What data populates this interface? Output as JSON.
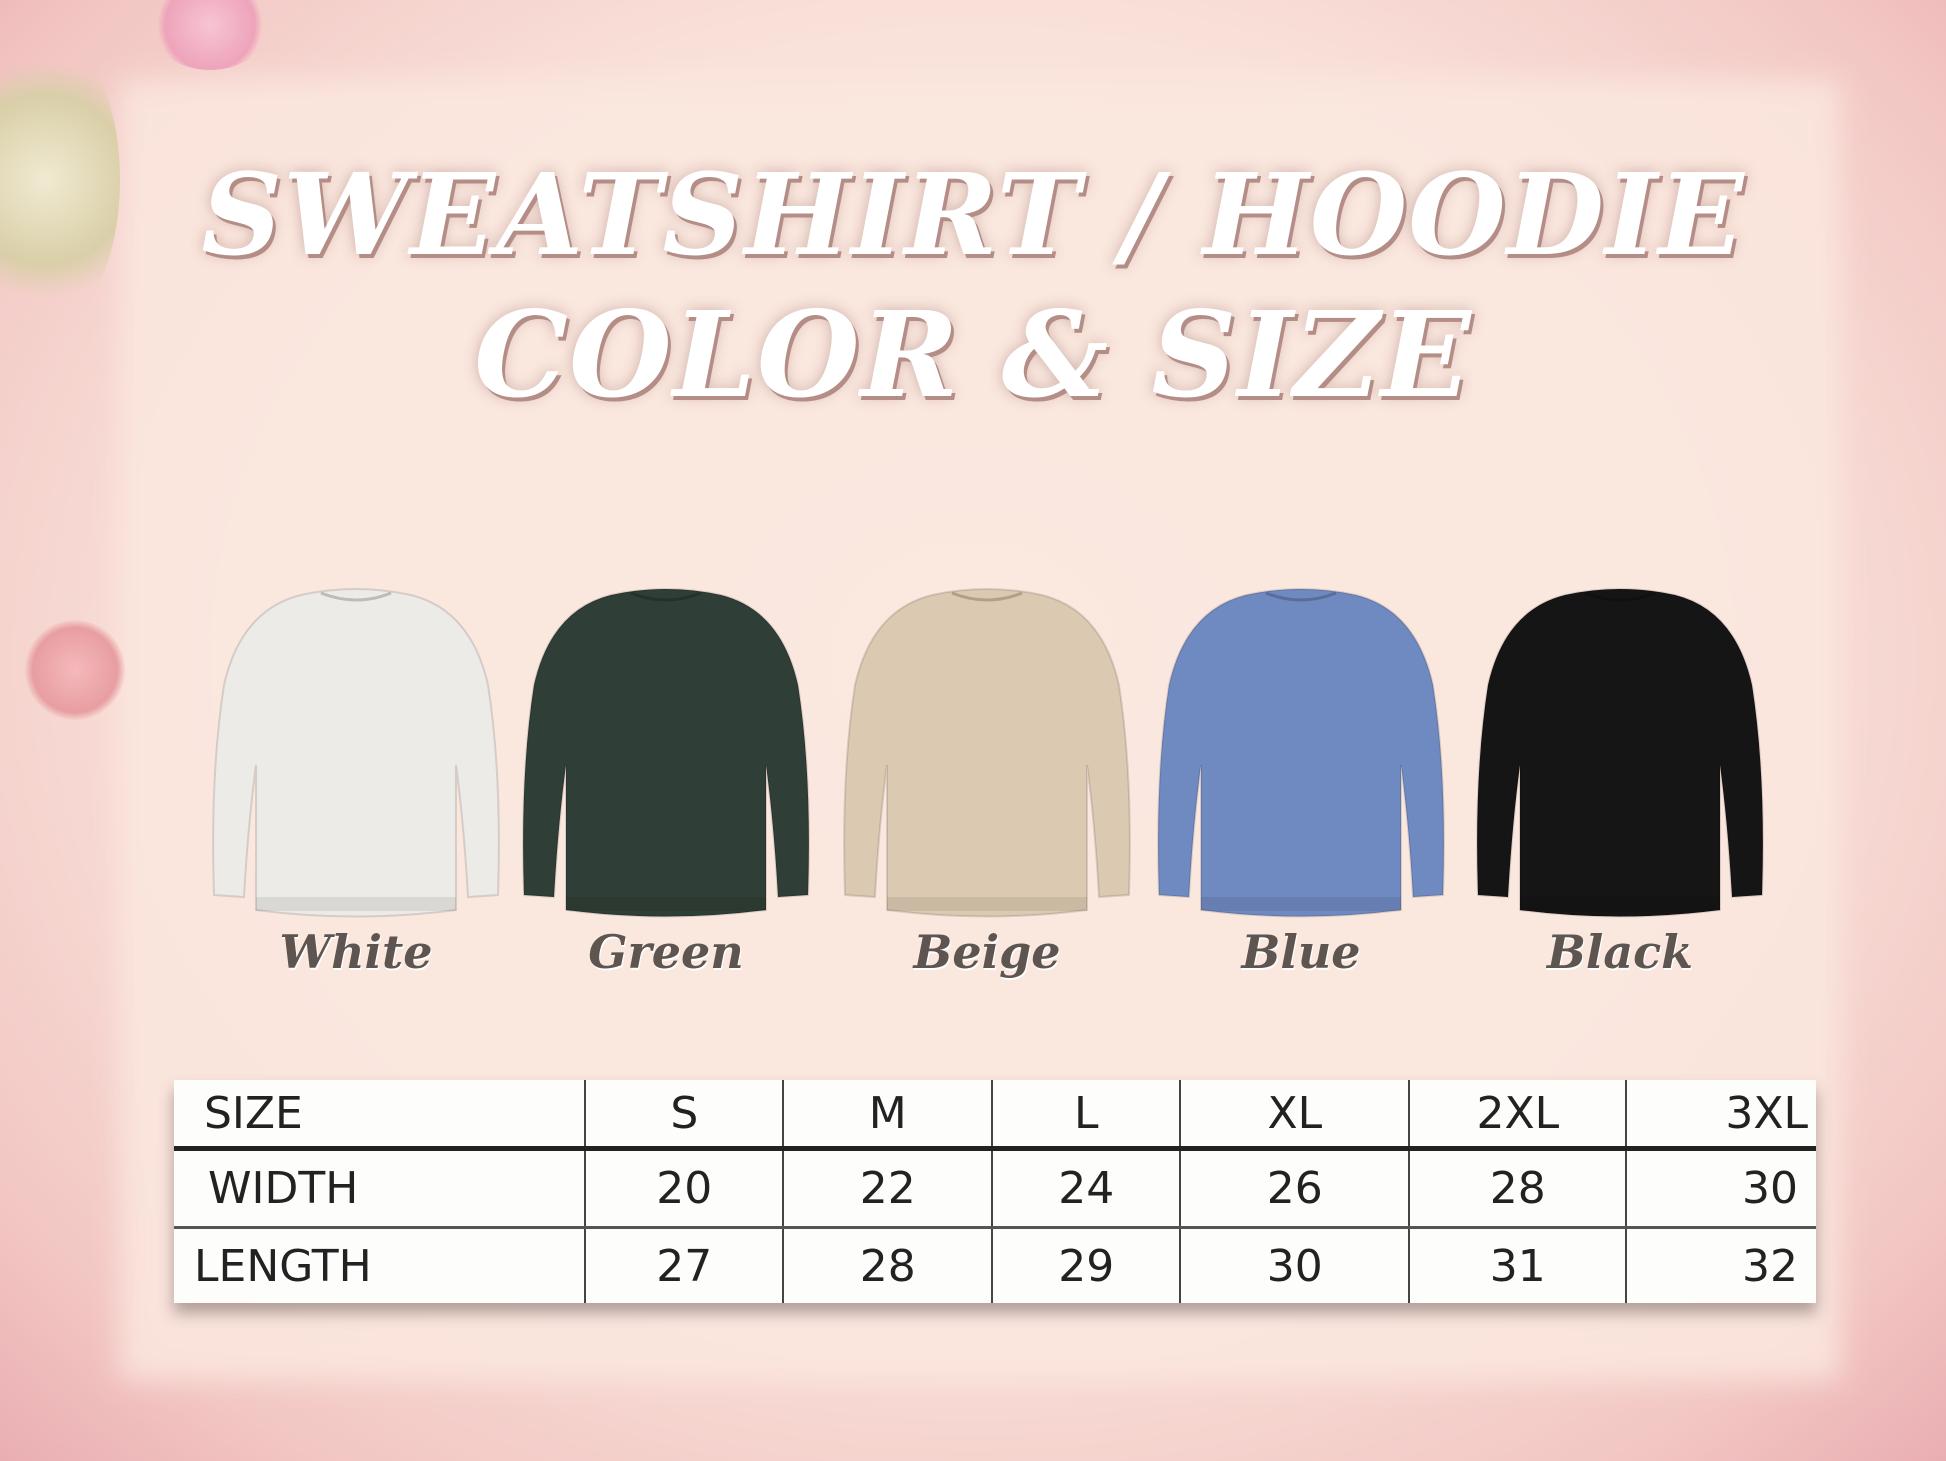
{
  "title": {
    "line1": "SWEATSHIRT / HOODIE",
    "line2": "COLOR & SIZE"
  },
  "colors": [
    {
      "label": "White",
      "hex": "#ecebe7"
    },
    {
      "label": "Green",
      "hex": "#2f3e36"
    },
    {
      "label": "Beige",
      "hex": "#dcc9b1"
    },
    {
      "label": "Blue",
      "hex": "#6f89c1"
    },
    {
      "label": "Black",
      "hex": "#151515"
    }
  ],
  "size_table": {
    "header": [
      "SIZE",
      "S",
      "M",
      "L",
      "XL",
      "2XL",
      "3XL"
    ],
    "rows": [
      [
        "WIDTH",
        "20",
        "22",
        "24",
        "26",
        "28",
        "30"
      ],
      [
        "LENGTH",
        "27",
        "28",
        "29",
        "30",
        "31",
        "32"
      ]
    ]
  }
}
